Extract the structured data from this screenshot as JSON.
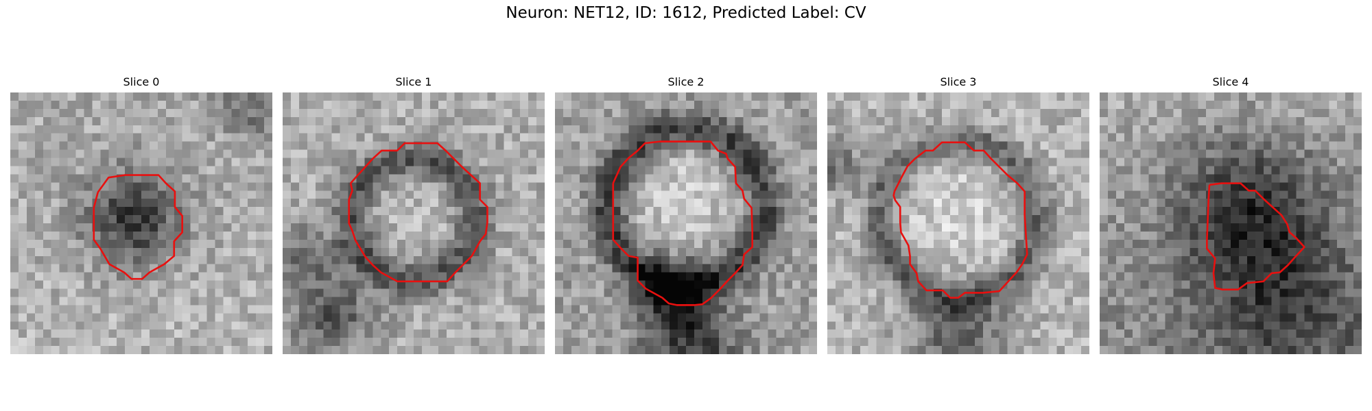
{
  "figure": {
    "title": "Neuron: NET12, ID: 1612, Predicted Label: CV",
    "contour_color": "#e8100f"
  },
  "slices": [
    {
      "label": "Slice 0"
    },
    {
      "label": "Slice 1"
    },
    {
      "label": "Slice 2"
    },
    {
      "label": "Slice 3"
    },
    {
      "label": "Slice 4"
    }
  ]
}
